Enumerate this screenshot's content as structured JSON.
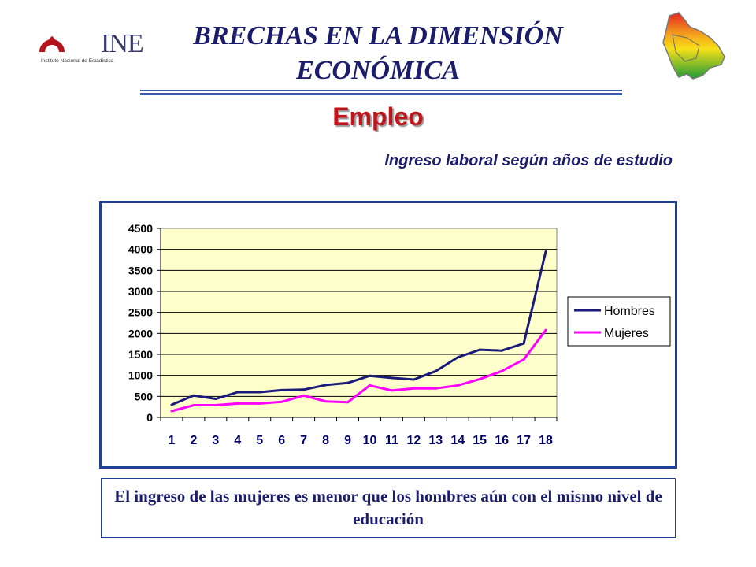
{
  "header": {
    "logo_text": "INE",
    "logo_subtext": "Instituto Nacional de Estadística",
    "title_line1": "BRECHAS EN LA DIMENSIÓN",
    "title_line2": "ECONÓMICA",
    "subtitle": "Empleo"
  },
  "colors": {
    "title": "#1c1c6c",
    "subtitle": "#c0151c",
    "frame": "#1f3f99",
    "plot_bg": "#ffffcc",
    "hombres": "#1a1a7a",
    "mujeres": "#ff00ff"
  },
  "icons": {
    "logo": "ine-logo-icon",
    "map": "bolivia-map-icon"
  },
  "chart_data": {
    "type": "line",
    "title": "Ingreso laboral según años de estudio",
    "xlabel": "",
    "ylabel": "",
    "categories": [
      "1",
      "2",
      "3",
      "4",
      "5",
      "6",
      "7",
      "8",
      "9",
      "10",
      "11",
      "12",
      "13",
      "14",
      "15",
      "16",
      "17",
      "18"
    ],
    "ylim": [
      0,
      4500
    ],
    "yticks": [
      0,
      500,
      1000,
      1500,
      2000,
      2500,
      3000,
      3500,
      4000,
      4500
    ],
    "grid": true,
    "legend_position": "right",
    "series": [
      {
        "name": "Hombres",
        "color": "#1a1a7a",
        "values": [
          300,
          520,
          440,
          600,
          600,
          650,
          660,
          770,
          820,
          990,
          940,
          900,
          1100,
          1430,
          1610,
          1590,
          1760,
          3950
        ]
      },
      {
        "name": "Mujeres",
        "color": "#ff00ff",
        "values": [
          150,
          290,
          290,
          330,
          330,
          370,
          520,
          380,
          360,
          760,
          640,
          690,
          690,
          760,
          910,
          1100,
          1380,
          2080
        ]
      }
    ]
  },
  "footer": {
    "note": "El ingreso de las mujeres es menor que los hombres aún con el mismo nivel de educación"
  }
}
